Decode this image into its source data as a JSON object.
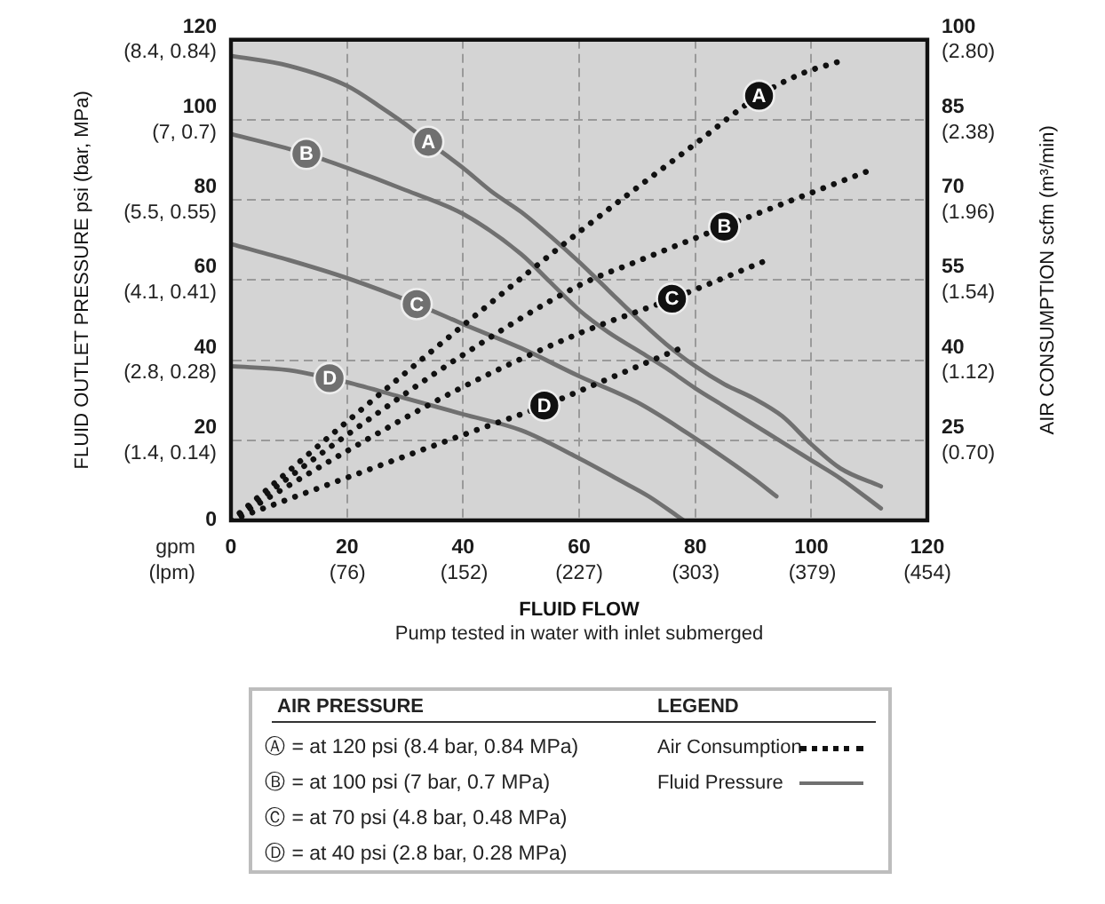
{
  "chart_data": {
    "type": "line",
    "xlabel": "FLUID FLOW",
    "ylabel": "FLUID OUTLET PRESSURE psi (bar, MPa)",
    "y2label": "AIR CONSUMPTION scfm (m³/min)",
    "annotations": [
      "gpm\n(lpm)",
      "Pump tested in water with inlet submerged",
      "AIR PRESSURE",
      "Ⓐ = at 120 psi (8.4 bar, 0.84 MPa)",
      "Ⓑ = at 100 psi (7 bar, 0.7 MPa)",
      "Ⓒ = at 70 psi (4.8 bar, 0.48 MPa)",
      "Ⓓ = at 40 psi (2.8 bar, 0.28 MPa)",
      "LEGEND",
      "Air Consumption",
      "Fluid Pressure",
      "(1.4, 0.14)",
      "(2.8, 0.28)",
      "(4.1, 0.41)",
      "(5.5, 0.55)",
      "(7, 0.7)",
      "(8.4, 0.84)"
    ],
    "xlim": [
      0,
      120
    ],
    "xticks": [
      0,
      20,
      40,
      60,
      80,
      100,
      120
    ],
    "x2lim": [
      0,
      454
    ],
    "x2ticks": [
      {
        "value": 76,
        "label": "(76)"
      },
      {
        "value": 152,
        "label": "(152)"
      },
      {
        "value": 227,
        "label": "(227)"
      },
      {
        "value": 303,
        "label": "(303)"
      },
      {
        "value": 379,
        "label": "(379)"
      },
      {
        "value": 454,
        "label": "(454)"
      }
    ],
    "ylim": [
      0,
      120
    ],
    "yticks": [
      0,
      20,
      40,
      60,
      80,
      100,
      120
    ],
    "y2lim": [
      10,
      100
    ],
    "y2ticks": [
      25,
      40,
      55,
      70,
      85,
      100
    ],
    "y3lim": [
      0.28,
      2.8
    ],
    "y3ticks": [
      {
        "value": 0.7,
        "label": "(0.70)"
      },
      {
        "value": 1.12,
        "label": "(1.12)"
      },
      {
        "value": 1.54,
        "label": "(1.54)"
      },
      {
        "value": 1.96,
        "label": "(1.96)"
      },
      {
        "value": 2.38,
        "label": "(2.38)"
      },
      {
        "value": 2.8,
        "label": "(2.80)"
      }
    ],
    "grid": true,
    "marker": "none",
    "series": [
      {
        "name": "A",
        "color": "#707070",
        "line_style": "solid",
        "axis": "y",
        "x": [
          0,
          10,
          20,
          26,
          30,
          34,
          40,
          45,
          50,
          55,
          60,
          65,
          70,
          75,
          80,
          85,
          90,
          95,
          100,
          105,
          112
        ],
        "values": [
          116,
          113.5,
          108.5,
          103,
          99,
          94.5,
          88,
          82,
          77,
          71,
          64.5,
          57.5,
          50.5,
          44,
          38.5,
          34,
          30.5,
          26,
          19,
          13,
          8.5
        ]
      },
      {
        "name": "B",
        "color": "#707070",
        "line_style": "solid",
        "axis": "y",
        "x": [
          0,
          13,
          20,
          30,
          40,
          50,
          55,
          60,
          65,
          70,
          75,
          80,
          85,
          90,
          95,
          100,
          105,
          112
        ],
        "values": [
          96.5,
          91.5,
          88,
          82.5,
          76.5,
          66.5,
          59.5,
          52.5,
          47,
          42.5,
          38,
          33,
          28.5,
          24,
          19.5,
          15,
          10.5,
          3
        ]
      },
      {
        "name": "C",
        "color": "#707070",
        "line_style": "solid",
        "axis": "y",
        "x": [
          0,
          10,
          20,
          32,
          40,
          50,
          60,
          70,
          80,
          90,
          94
        ],
        "values": [
          69,
          65,
          60.5,
          54,
          49,
          43,
          36,
          29.5,
          20.5,
          10.5,
          6
        ]
      },
      {
        "name": "D",
        "color": "#707070",
        "line_style": "solid",
        "axis": "y",
        "x": [
          0,
          10,
          17,
          20,
          30,
          40,
          50,
          60,
          67,
          72,
          78
        ],
        "values": [
          38.5,
          37.5,
          35.5,
          34.5,
          30.5,
          26.5,
          22.5,
          15.5,
          10,
          6,
          0
        ]
      },
      {
        "name": "A",
        "color": "#111111",
        "line_style": "dotted",
        "axis": "y2",
        "x": [
          0,
          20,
          40,
          60,
          80,
          91,
          98,
          105
        ],
        "values": [
          10,
          28.5,
          46.5,
          64,
          80.5,
          89.5,
          93.5,
          96
        ]
      },
      {
        "name": "B",
        "color": "#111111",
        "line_style": "dotted",
        "axis": "y2",
        "x": [
          0,
          20,
          40,
          60,
          70,
          85,
          98,
          110
        ],
        "values": [
          10,
          26,
          41,
          54,
          58.5,
          65,
          70.5,
          75.5
        ]
      },
      {
        "name": "C",
        "color": "#111111",
        "line_style": "dotted",
        "axis": "y2",
        "x": [
          0,
          20,
          40,
          60,
          76,
          93
        ],
        "values": [
          10,
          23,
          35,
          45,
          51.5,
          59
        ]
      },
      {
        "name": "D",
        "color": "#111111",
        "line_style": "dotted",
        "axis": "y2",
        "x": [
          0,
          20,
          40,
          54,
          65,
          77
        ],
        "values": [
          10,
          18,
          26,
          31.5,
          36.5,
          42
        ]
      }
    ]
  }
}
